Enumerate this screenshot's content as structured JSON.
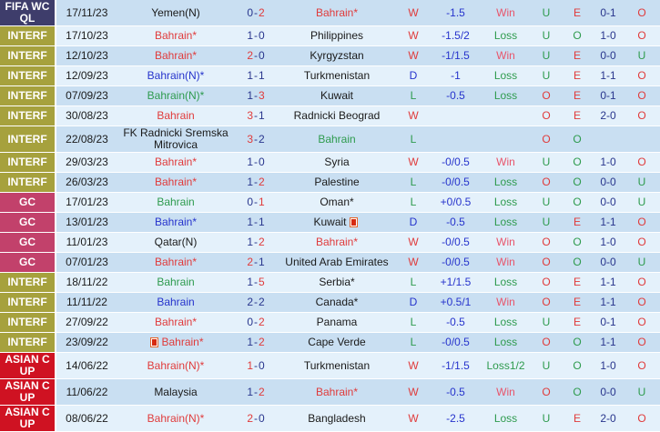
{
  "palette": {
    "red": "#e03b3b",
    "green": "#2e9b4e",
    "blue": "#2633cc",
    "navy": "#29368d",
    "rose": "#e8556b",
    "band_navy": "#3e3d6b",
    "band_olive": "#a6a13d",
    "band_crimson": "#c2416b",
    "band_red": "#cf1222",
    "row_dark": "#c9dff2",
    "row_light": "#e4f1fb"
  },
  "icons": {
    "red_card": "red-card-icon"
  },
  "table": {
    "rows": [
      {
        "comp": "FIFA WCQL",
        "band": "navy",
        "date": "17/11/23",
        "home": "Yemen(N)",
        "home_color": "black",
        "home_icon": false,
        "score_h": "0",
        "score_h_color": "navy",
        "score_a": "2",
        "score_a_color": "red",
        "away": "Bahrain*",
        "away_color": "red",
        "away_icon": false,
        "res": "W",
        "res_color": "red",
        "hcp": "-1.5",
        "hcp_res": "Win",
        "hcp_res_color": "rose",
        "ou1": "U",
        "ou1_color": "green",
        "eo": "E",
        "eo_color": "red",
        "half": "0-1",
        "ou2": "O",
        "ou2_color": "red"
      },
      {
        "comp": "INTERF",
        "band": "olive",
        "date": "17/10/23",
        "home": "Bahrain*",
        "home_color": "red",
        "home_icon": false,
        "score_h": "1",
        "score_h_color": "navy",
        "score_a": "0",
        "score_a_color": "navy",
        "away": "Philippines",
        "away_color": "black",
        "away_icon": false,
        "res": "W",
        "res_color": "red",
        "hcp": "-1.5/2",
        "hcp_res": "Loss",
        "hcp_res_color": "green",
        "ou1": "U",
        "ou1_color": "green",
        "eo": "O",
        "eo_color": "green",
        "half": "1-0",
        "ou2": "O",
        "ou2_color": "red"
      },
      {
        "comp": "INTERF",
        "band": "olive",
        "date": "12/10/23",
        "home": "Bahrain*",
        "home_color": "red",
        "home_icon": false,
        "score_h": "2",
        "score_h_color": "red",
        "score_a": "0",
        "score_a_color": "navy",
        "away": "Kyrgyzstan",
        "away_color": "black",
        "away_icon": false,
        "res": "W",
        "res_color": "red",
        "hcp": "-1/1.5",
        "hcp_res": "Win",
        "hcp_res_color": "rose",
        "ou1": "U",
        "ou1_color": "green",
        "eo": "E",
        "eo_color": "red",
        "half": "0-0",
        "ou2": "U",
        "ou2_color": "green"
      },
      {
        "comp": "INTERF",
        "band": "olive",
        "date": "12/09/23",
        "home": "Bahrain(N)*",
        "home_color": "blue",
        "home_icon": false,
        "score_h": "1",
        "score_h_color": "navy",
        "score_a": "1",
        "score_a_color": "navy",
        "away": "Turkmenistan",
        "away_color": "black",
        "away_icon": false,
        "res": "D",
        "res_color": "blue",
        "hcp": "-1",
        "hcp_res": "Loss",
        "hcp_res_color": "green",
        "ou1": "U",
        "ou1_color": "green",
        "eo": "E",
        "eo_color": "red",
        "half": "1-1",
        "ou2": "O",
        "ou2_color": "red"
      },
      {
        "comp": "INTERF",
        "band": "olive",
        "date": "07/09/23",
        "home": "Bahrain(N)*",
        "home_color": "green",
        "home_icon": false,
        "score_h": "1",
        "score_h_color": "navy",
        "score_a": "3",
        "score_a_color": "red",
        "away": "Kuwait",
        "away_color": "black",
        "away_icon": false,
        "res": "L",
        "res_color": "green",
        "hcp": "-0.5",
        "hcp_res": "Loss",
        "hcp_res_color": "green",
        "ou1": "O",
        "ou1_color": "red",
        "eo": "E",
        "eo_color": "red",
        "half": "0-1",
        "ou2": "O",
        "ou2_color": "red"
      },
      {
        "comp": "INTERF",
        "band": "olive",
        "date": "30/08/23",
        "home": "Bahrain",
        "home_color": "red",
        "home_icon": false,
        "score_h": "3",
        "score_h_color": "red",
        "score_a": "1",
        "score_a_color": "navy",
        "away": "Radnicki Beograd",
        "away_color": "black",
        "away_icon": false,
        "res": "W",
        "res_color": "red",
        "hcp": "",
        "hcp_res": "",
        "hcp_res_color": "green",
        "ou1": "O",
        "ou1_color": "red",
        "eo": "E",
        "eo_color": "red",
        "half": "2-0",
        "ou2": "O",
        "ou2_color": "red"
      },
      {
        "comp": "INTERF",
        "band": "olive",
        "date": "22/08/23",
        "home": "FK Radnicki Sremska Mitrovica",
        "home_color": "black",
        "home_icon": false,
        "score_h": "3",
        "score_h_color": "red",
        "score_a": "2",
        "score_a_color": "navy",
        "away": "Bahrain",
        "away_color": "green",
        "away_icon": false,
        "res": "L",
        "res_color": "green",
        "hcp": "",
        "hcp_res": "",
        "hcp_res_color": "green",
        "ou1": "O",
        "ou1_color": "red",
        "eo": "O",
        "eo_color": "green",
        "half": "",
        "ou2": "",
        "ou2_color": "red"
      },
      {
        "comp": "INTERF",
        "band": "olive",
        "date": "29/03/23",
        "home": "Bahrain*",
        "home_color": "red",
        "home_icon": false,
        "score_h": "1",
        "score_h_color": "navy",
        "score_a": "0",
        "score_a_color": "navy",
        "away": "Syria",
        "away_color": "black",
        "away_icon": false,
        "res": "W",
        "res_color": "red",
        "hcp": "-0/0.5",
        "hcp_res": "Win",
        "hcp_res_color": "rose",
        "ou1": "U",
        "ou1_color": "green",
        "eo": "O",
        "eo_color": "green",
        "half": "1-0",
        "ou2": "O",
        "ou2_color": "red"
      },
      {
        "comp": "INTERF",
        "band": "olive",
        "date": "26/03/23",
        "home": "Bahrain*",
        "home_color": "red",
        "home_icon": false,
        "score_h": "1",
        "score_h_color": "navy",
        "score_a": "2",
        "score_a_color": "red",
        "away": "Palestine",
        "away_color": "black",
        "away_icon": false,
        "res": "L",
        "res_color": "green",
        "hcp": "-0/0.5",
        "hcp_res": "Loss",
        "hcp_res_color": "green",
        "ou1": "O",
        "ou1_color": "red",
        "eo": "O",
        "eo_color": "green",
        "half": "0-0",
        "ou2": "U",
        "ou2_color": "green"
      },
      {
        "comp": "GC",
        "band": "crimson",
        "date": "17/01/23",
        "home": "Bahrain",
        "home_color": "green",
        "home_icon": false,
        "score_h": "0",
        "score_h_color": "navy",
        "score_a": "1",
        "score_a_color": "red",
        "away": "Oman*",
        "away_color": "black",
        "away_icon": false,
        "res": "L",
        "res_color": "green",
        "hcp": "+0/0.5",
        "hcp_res": "Loss",
        "hcp_res_color": "green",
        "ou1": "U",
        "ou1_color": "green",
        "eo": "O",
        "eo_color": "green",
        "half": "0-0",
        "ou2": "U",
        "ou2_color": "green"
      },
      {
        "comp": "GC",
        "band": "crimson",
        "date": "13/01/23",
        "home": "Bahrain*",
        "home_color": "blue",
        "home_icon": false,
        "score_h": "1",
        "score_h_color": "navy",
        "score_a": "1",
        "score_a_color": "navy",
        "away": "Kuwait",
        "away_color": "black",
        "away_icon": true,
        "res": "D",
        "res_color": "blue",
        "hcp": "-0.5",
        "hcp_res": "Loss",
        "hcp_res_color": "green",
        "ou1": "U",
        "ou1_color": "green",
        "eo": "E",
        "eo_color": "red",
        "half": "1-1",
        "ou2": "O",
        "ou2_color": "red"
      },
      {
        "comp": "GC",
        "band": "crimson",
        "date": "11/01/23",
        "home": "Qatar(N)",
        "home_color": "black",
        "home_icon": false,
        "score_h": "1",
        "score_h_color": "navy",
        "score_a": "2",
        "score_a_color": "red",
        "away": "Bahrain*",
        "away_color": "red",
        "away_icon": false,
        "res": "W",
        "res_color": "red",
        "hcp": "-0/0.5",
        "hcp_res": "Win",
        "hcp_res_color": "rose",
        "ou1": "O",
        "ou1_color": "red",
        "eo": "O",
        "eo_color": "green",
        "half": "1-0",
        "ou2": "O",
        "ou2_color": "red"
      },
      {
        "comp": "GC",
        "band": "crimson",
        "date": "07/01/23",
        "home": "Bahrain*",
        "home_color": "red",
        "home_icon": false,
        "score_h": "2",
        "score_h_color": "red",
        "score_a": "1",
        "score_a_color": "navy",
        "away": "United Arab Emirates",
        "away_color": "black",
        "away_icon": false,
        "res": "W",
        "res_color": "red",
        "hcp": "-0/0.5",
        "hcp_res": "Win",
        "hcp_res_color": "rose",
        "ou1": "O",
        "ou1_color": "red",
        "eo": "O",
        "eo_color": "green",
        "half": "0-0",
        "ou2": "U",
        "ou2_color": "green"
      },
      {
        "comp": "INTERF",
        "band": "olive",
        "date": "18/11/22",
        "home": "Bahrain",
        "home_color": "green",
        "home_icon": false,
        "score_h": "1",
        "score_h_color": "navy",
        "score_a": "5",
        "score_a_color": "red",
        "away": "Serbia*",
        "away_color": "black",
        "away_icon": false,
        "res": "L",
        "res_color": "green",
        "hcp": "+1/1.5",
        "hcp_res": "Loss",
        "hcp_res_color": "green",
        "ou1": "O",
        "ou1_color": "red",
        "eo": "E",
        "eo_color": "red",
        "half": "1-1",
        "ou2": "O",
        "ou2_color": "red"
      },
      {
        "comp": "INTERF",
        "band": "olive",
        "date": "11/11/22",
        "home": "Bahrain",
        "home_color": "blue",
        "home_icon": false,
        "score_h": "2",
        "score_h_color": "navy",
        "score_a": "2",
        "score_a_color": "navy",
        "away": "Canada*",
        "away_color": "black",
        "away_icon": false,
        "res": "D",
        "res_color": "blue",
        "hcp": "+0.5/1",
        "hcp_res": "Win",
        "hcp_res_color": "rose",
        "ou1": "O",
        "ou1_color": "red",
        "eo": "E",
        "eo_color": "red",
        "half": "1-1",
        "ou2": "O",
        "ou2_color": "red"
      },
      {
        "comp": "INTERF",
        "band": "olive",
        "date": "27/09/22",
        "home": "Bahrain*",
        "home_color": "red",
        "home_icon": false,
        "score_h": "0",
        "score_h_color": "navy",
        "score_a": "2",
        "score_a_color": "red",
        "away": "Panama",
        "away_color": "black",
        "away_icon": false,
        "res": "L",
        "res_color": "green",
        "hcp": "-0.5",
        "hcp_res": "Loss",
        "hcp_res_color": "green",
        "ou1": "U",
        "ou1_color": "green",
        "eo": "E",
        "eo_color": "red",
        "half": "0-1",
        "ou2": "O",
        "ou2_color": "red"
      },
      {
        "comp": "INTERF",
        "band": "olive",
        "date": "23/09/22",
        "home": "Bahrain*",
        "home_color": "red",
        "home_icon": true,
        "score_h": "1",
        "score_h_color": "navy",
        "score_a": "2",
        "score_a_color": "red",
        "away": "Cape Verde",
        "away_color": "black",
        "away_icon": false,
        "res": "L",
        "res_color": "green",
        "hcp": "-0/0.5",
        "hcp_res": "Loss",
        "hcp_res_color": "green",
        "ou1": "O",
        "ou1_color": "red",
        "eo": "O",
        "eo_color": "green",
        "half": "1-1",
        "ou2": "O",
        "ou2_color": "red"
      },
      {
        "comp": "ASIAN CUP",
        "band": "red",
        "date": "14/06/22",
        "home": "Bahrain(N)*",
        "home_color": "red",
        "home_icon": false,
        "score_h": "1",
        "score_h_color": "red",
        "score_a": "0",
        "score_a_color": "navy",
        "away": "Turkmenistan",
        "away_color": "black",
        "away_icon": false,
        "res": "W",
        "res_color": "red",
        "hcp": "-1/1.5",
        "hcp_res": "Loss1/2",
        "hcp_res_color": "green",
        "ou1": "U",
        "ou1_color": "green",
        "eo": "O",
        "eo_color": "green",
        "half": "1-0",
        "ou2": "O",
        "ou2_color": "red"
      },
      {
        "comp": "ASIAN CUP",
        "band": "red",
        "date": "11/06/22",
        "home": "Malaysia",
        "home_color": "black",
        "home_icon": false,
        "score_h": "1",
        "score_h_color": "navy",
        "score_a": "2",
        "score_a_color": "red",
        "away": "Bahrain*",
        "away_color": "red",
        "away_icon": false,
        "res": "W",
        "res_color": "red",
        "hcp": "-0.5",
        "hcp_res": "Win",
        "hcp_res_color": "rose",
        "ou1": "O",
        "ou1_color": "red",
        "eo": "O",
        "eo_color": "green",
        "half": "0-0",
        "ou2": "U",
        "ou2_color": "green"
      },
      {
        "comp": "ASIAN CUP",
        "band": "red",
        "date": "08/06/22",
        "home": "Bahrain(N)*",
        "home_color": "red",
        "home_icon": false,
        "score_h": "2",
        "score_h_color": "red",
        "score_a": "0",
        "score_a_color": "navy",
        "away": "Bangladesh",
        "away_color": "black",
        "away_icon": false,
        "res": "W",
        "res_color": "red",
        "hcp": "-2.5",
        "hcp_res": "Loss",
        "hcp_res_color": "green",
        "ou1": "U",
        "ou1_color": "green",
        "eo": "E",
        "eo_color": "red",
        "half": "2-0",
        "ou2": "O",
        "ou2_color": "red"
      }
    ]
  }
}
